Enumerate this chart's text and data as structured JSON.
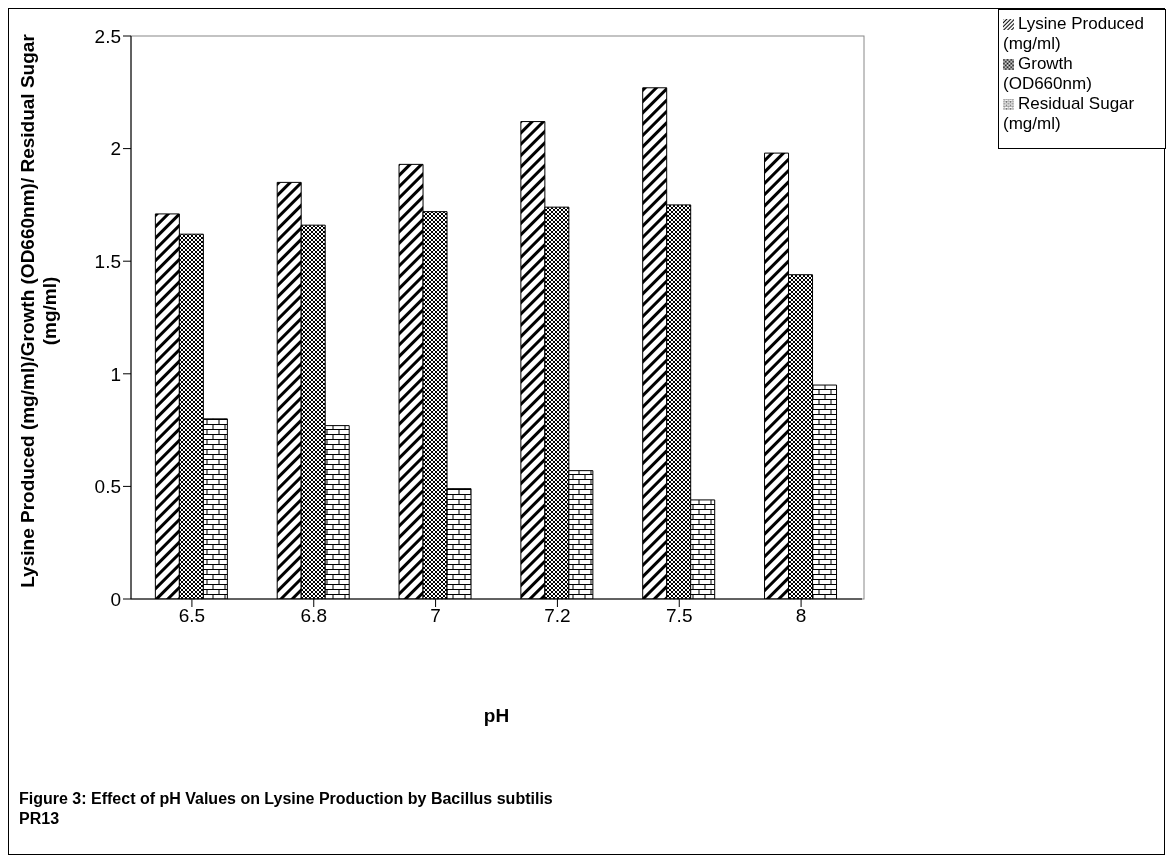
{
  "chart_data": {
    "type": "bar",
    "title": "Figure 3: Effect of  pH Values on Lysine Production by Bacillus subtilis PR13",
    "xlabel": "pH",
    "ylabel": "Lysine Produced (mg/ml)/Growth (OD660nm)/ Residual Sugar (mg/ml)",
    "categories": [
      "6.5",
      "6.8",
      "7",
      "7.2",
      "7.5",
      "8"
    ],
    "series": [
      {
        "name": "Lysine Produced (mg/ml)",
        "color": "#000000",
        "values": [
          1.71,
          1.85,
          1.93,
          2.12,
          2.27,
          1.98
        ]
      },
      {
        "name": "Growth (OD660nm)",
        "color": "#000000",
        "values": [
          1.62,
          1.66,
          1.72,
          1.74,
          1.75,
          1.44
        ]
      },
      {
        "name": "Residual Sugar (mg/ml)",
        "color": "#000000",
        "values": [
          0.8,
          0.77,
          0.49,
          0.57,
          0.44,
          0.95
        ]
      }
    ],
    "ylim": [
      0,
      2.5
    ],
    "yticks": [
      0,
      0.5,
      1,
      1.5,
      2,
      2.5
    ],
    "grid": false,
    "legend": "top right"
  }
}
